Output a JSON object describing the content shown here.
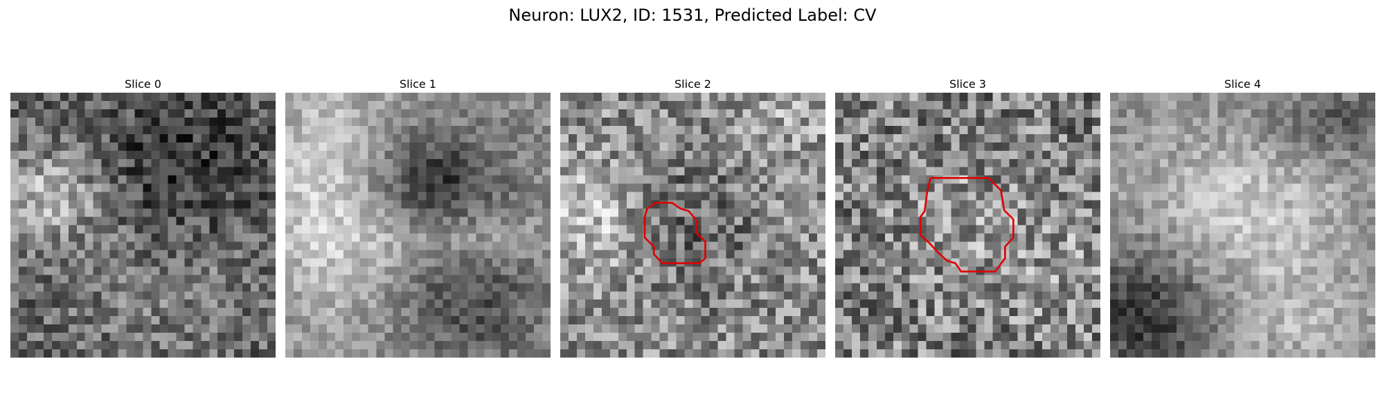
{
  "figure_title": "Neuron: LUX2, ID: 1531, Predicted Label: CV",
  "roi_color": "#e00000",
  "slices": [
    {
      "title": "Slice 0",
      "seed": 11,
      "has_roi": false
    },
    {
      "title": "Slice 1",
      "seed": 27,
      "has_roi": false
    },
    {
      "title": "Slice 2",
      "seed": 43,
      "has_roi": true
    },
    {
      "title": "Slice 3",
      "seed": 59,
      "has_roi": true
    },
    {
      "title": "Slice 4",
      "seed": 71,
      "has_roi": false
    }
  ]
}
